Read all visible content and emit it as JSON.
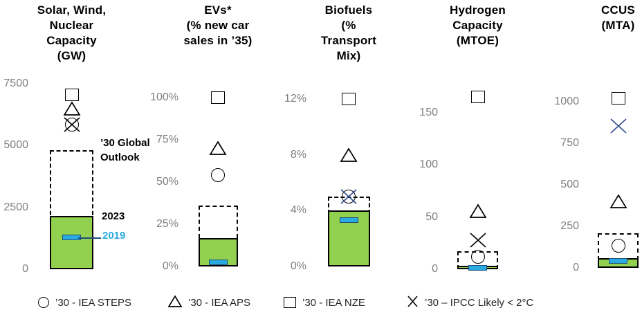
{
  "colors": {
    "bar_green": "#92D050",
    "dash_blue_fill": "#29ABE2",
    "dash_blue_border": "#1F4E79",
    "navy_x": "#2E4B8F",
    "black": "#000000",
    "tick_gray": "#7F7F7F",
    "label_2019_blue": "#29ABE2"
  },
  "annotations": {
    "outlook_label": "’30 Global\nOutlook",
    "label_2023": "2023",
    "label_2019": "2019"
  },
  "legend": [
    {
      "marker": "circle",
      "label": "’30 - IEA STEPS"
    },
    {
      "marker": "triangle",
      "label": "’30 - IEA APS"
    },
    {
      "marker": "square",
      "label": "’30 - IEA NZE"
    },
    {
      "marker": "x",
      "label": "’30 – IPCC Likely < 2°C"
    }
  ],
  "chart_data": {
    "type": "bar",
    "subtype": "bar-with-scenario-markers",
    "panels": [
      {
        "id": "solar_wind_nuclear",
        "title_lines": [
          "Solar, Wind,",
          "Nuclear",
          "Capacity",
          "(GW)"
        ],
        "unit": "GW",
        "ylim": [
          0,
          7500
        ],
        "ticks": [
          {
            "value": 0,
            "label": "0"
          },
          {
            "value": 2500,
            "label": "2500"
          },
          {
            "value": 5000,
            "label": "5000"
          },
          {
            "value": 7500,
            "label": "7500"
          }
        ],
        "dash_2019": 1300,
        "bar_2023": 2150,
        "outlook_2030": 4800,
        "markers": {
          "iea_steps": 5850,
          "iea_aps": 6500,
          "iea_nze": 7050,
          "ipcc_2c": 5850
        },
        "ipcc_color": "#000000"
      },
      {
        "id": "evs",
        "title_lines": [
          "EVs*",
          "(% new car",
          "sales in ’35)"
        ],
        "unit": "% new car sales in 2035",
        "ylim": [
          0,
          100
        ],
        "ticks": [
          {
            "value": 0,
            "label": "0%"
          },
          {
            "value": 25,
            "label": "25%"
          },
          {
            "value": 50,
            "label": "50%"
          },
          {
            "value": 75,
            "label": "75%"
          },
          {
            "value": 100,
            "label": "100%"
          }
        ],
        "dash_2019": 2.5,
        "bar_2023": 17,
        "outlook_2030": 36,
        "markers": {
          "iea_steps": 54,
          "iea_aps": 70,
          "iea_nze": 100,
          "ipcc_2c": null
        },
        "ipcc_color": "#000000"
      },
      {
        "id": "biofuels",
        "title_lines": [
          "Biofuels",
          "(%",
          "Transport",
          "Mix)"
        ],
        "unit": "% Transport Mix",
        "ylim": [
          0,
          12
        ],
        "ticks": [
          {
            "value": 0,
            "label": "0%"
          },
          {
            "value": 4,
            "label": "4%"
          },
          {
            "value": 8,
            "label": "8%"
          },
          {
            "value": 12,
            "label": "12%"
          }
        ],
        "dash_2019": 3.3,
        "bar_2023": 4,
        "outlook_2030": 5,
        "markers": {
          "iea_steps": 5,
          "iea_aps": 8,
          "iea_nze": 12,
          "ipcc_2c": 5
        },
        "ipcc_color": "#2E4B8F"
      },
      {
        "id": "hydrogen",
        "title_lines": [
          "Hydrogen",
          "Capacity",
          "(MTOE)"
        ],
        "unit": "MTOE",
        "ylim": [
          0,
          150
        ],
        "ticks": [
          {
            "value": 0,
            "label": "0"
          },
          {
            "value": 50,
            "label": "50"
          },
          {
            "value": 100,
            "label": "100"
          },
          {
            "value": 150,
            "label": "150"
          }
        ],
        "dash_2019": 1,
        "bar_2023": 3,
        "outlook_2030": 17,
        "markers": {
          "iea_steps": 12,
          "iea_aps": 56,
          "iea_nze": 165,
          "ipcc_2c": 28
        },
        "ipcc_color": "#000000"
      },
      {
        "id": "ccus",
        "title_lines": [
          "CCUS",
          "(MTA)"
        ],
        "unit": "MTA",
        "ylim": [
          0,
          1000
        ],
        "ticks": [
          {
            "value": 0,
            "label": "0"
          },
          {
            "value": 250,
            "label": "250"
          },
          {
            "value": 500,
            "label": "500"
          },
          {
            "value": 750,
            "label": "750"
          },
          {
            "value": 1000,
            "label": "1000"
          }
        ],
        "dash_2019": 42,
        "bar_2023": 60,
        "outlook_2030": 210,
        "markers": {
          "iea_steps": 135,
          "iea_aps": 400,
          "iea_nze": 1020,
          "ipcc_2c": 855
        },
        "ipcc_color": "#2E4B8F"
      }
    ]
  }
}
